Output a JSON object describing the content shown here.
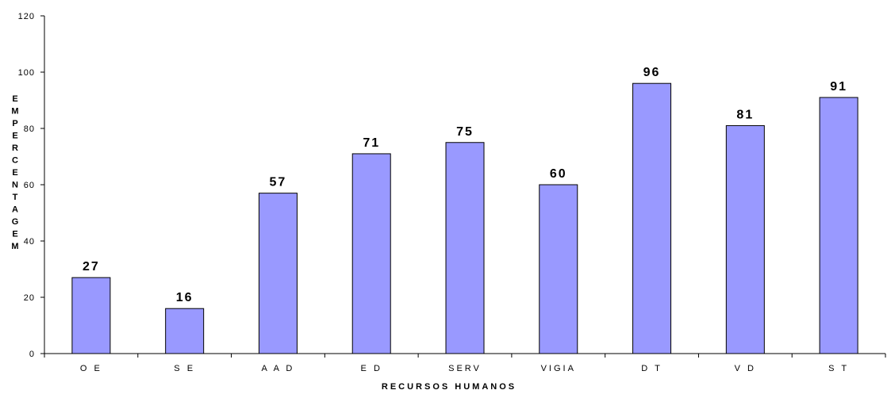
{
  "chart_data": {
    "type": "bar",
    "categories": [
      "O E",
      "S E",
      "A A D",
      "E D",
      "SERV",
      "VIGIA",
      "D T",
      "V D",
      "S T"
    ],
    "values": [
      27,
      16,
      57,
      71,
      75,
      60,
      96,
      81,
      91
    ],
    "data_labels": [
      "27",
      "16",
      "57",
      "71",
      "75",
      "60",
      "96",
      "81",
      "91"
    ],
    "title": "",
    "xlabel": "RECURSOS HUMANOS",
    "ylabel": "EM PERCENTAGEM",
    "ylabel_letters": [
      "E",
      "M",
      "P",
      "E",
      "R",
      "C",
      "E",
      "N",
      "T",
      "A",
      "G",
      "E",
      "M"
    ],
    "ylim": [
      0,
      120
    ],
    "yticks": [
      "0",
      "20",
      "40",
      "60",
      "80",
      "100",
      "120"
    ],
    "grid": false,
    "legend": "none",
    "bar_color": "#9999ff",
    "bar_edge_color": "#000000"
  }
}
